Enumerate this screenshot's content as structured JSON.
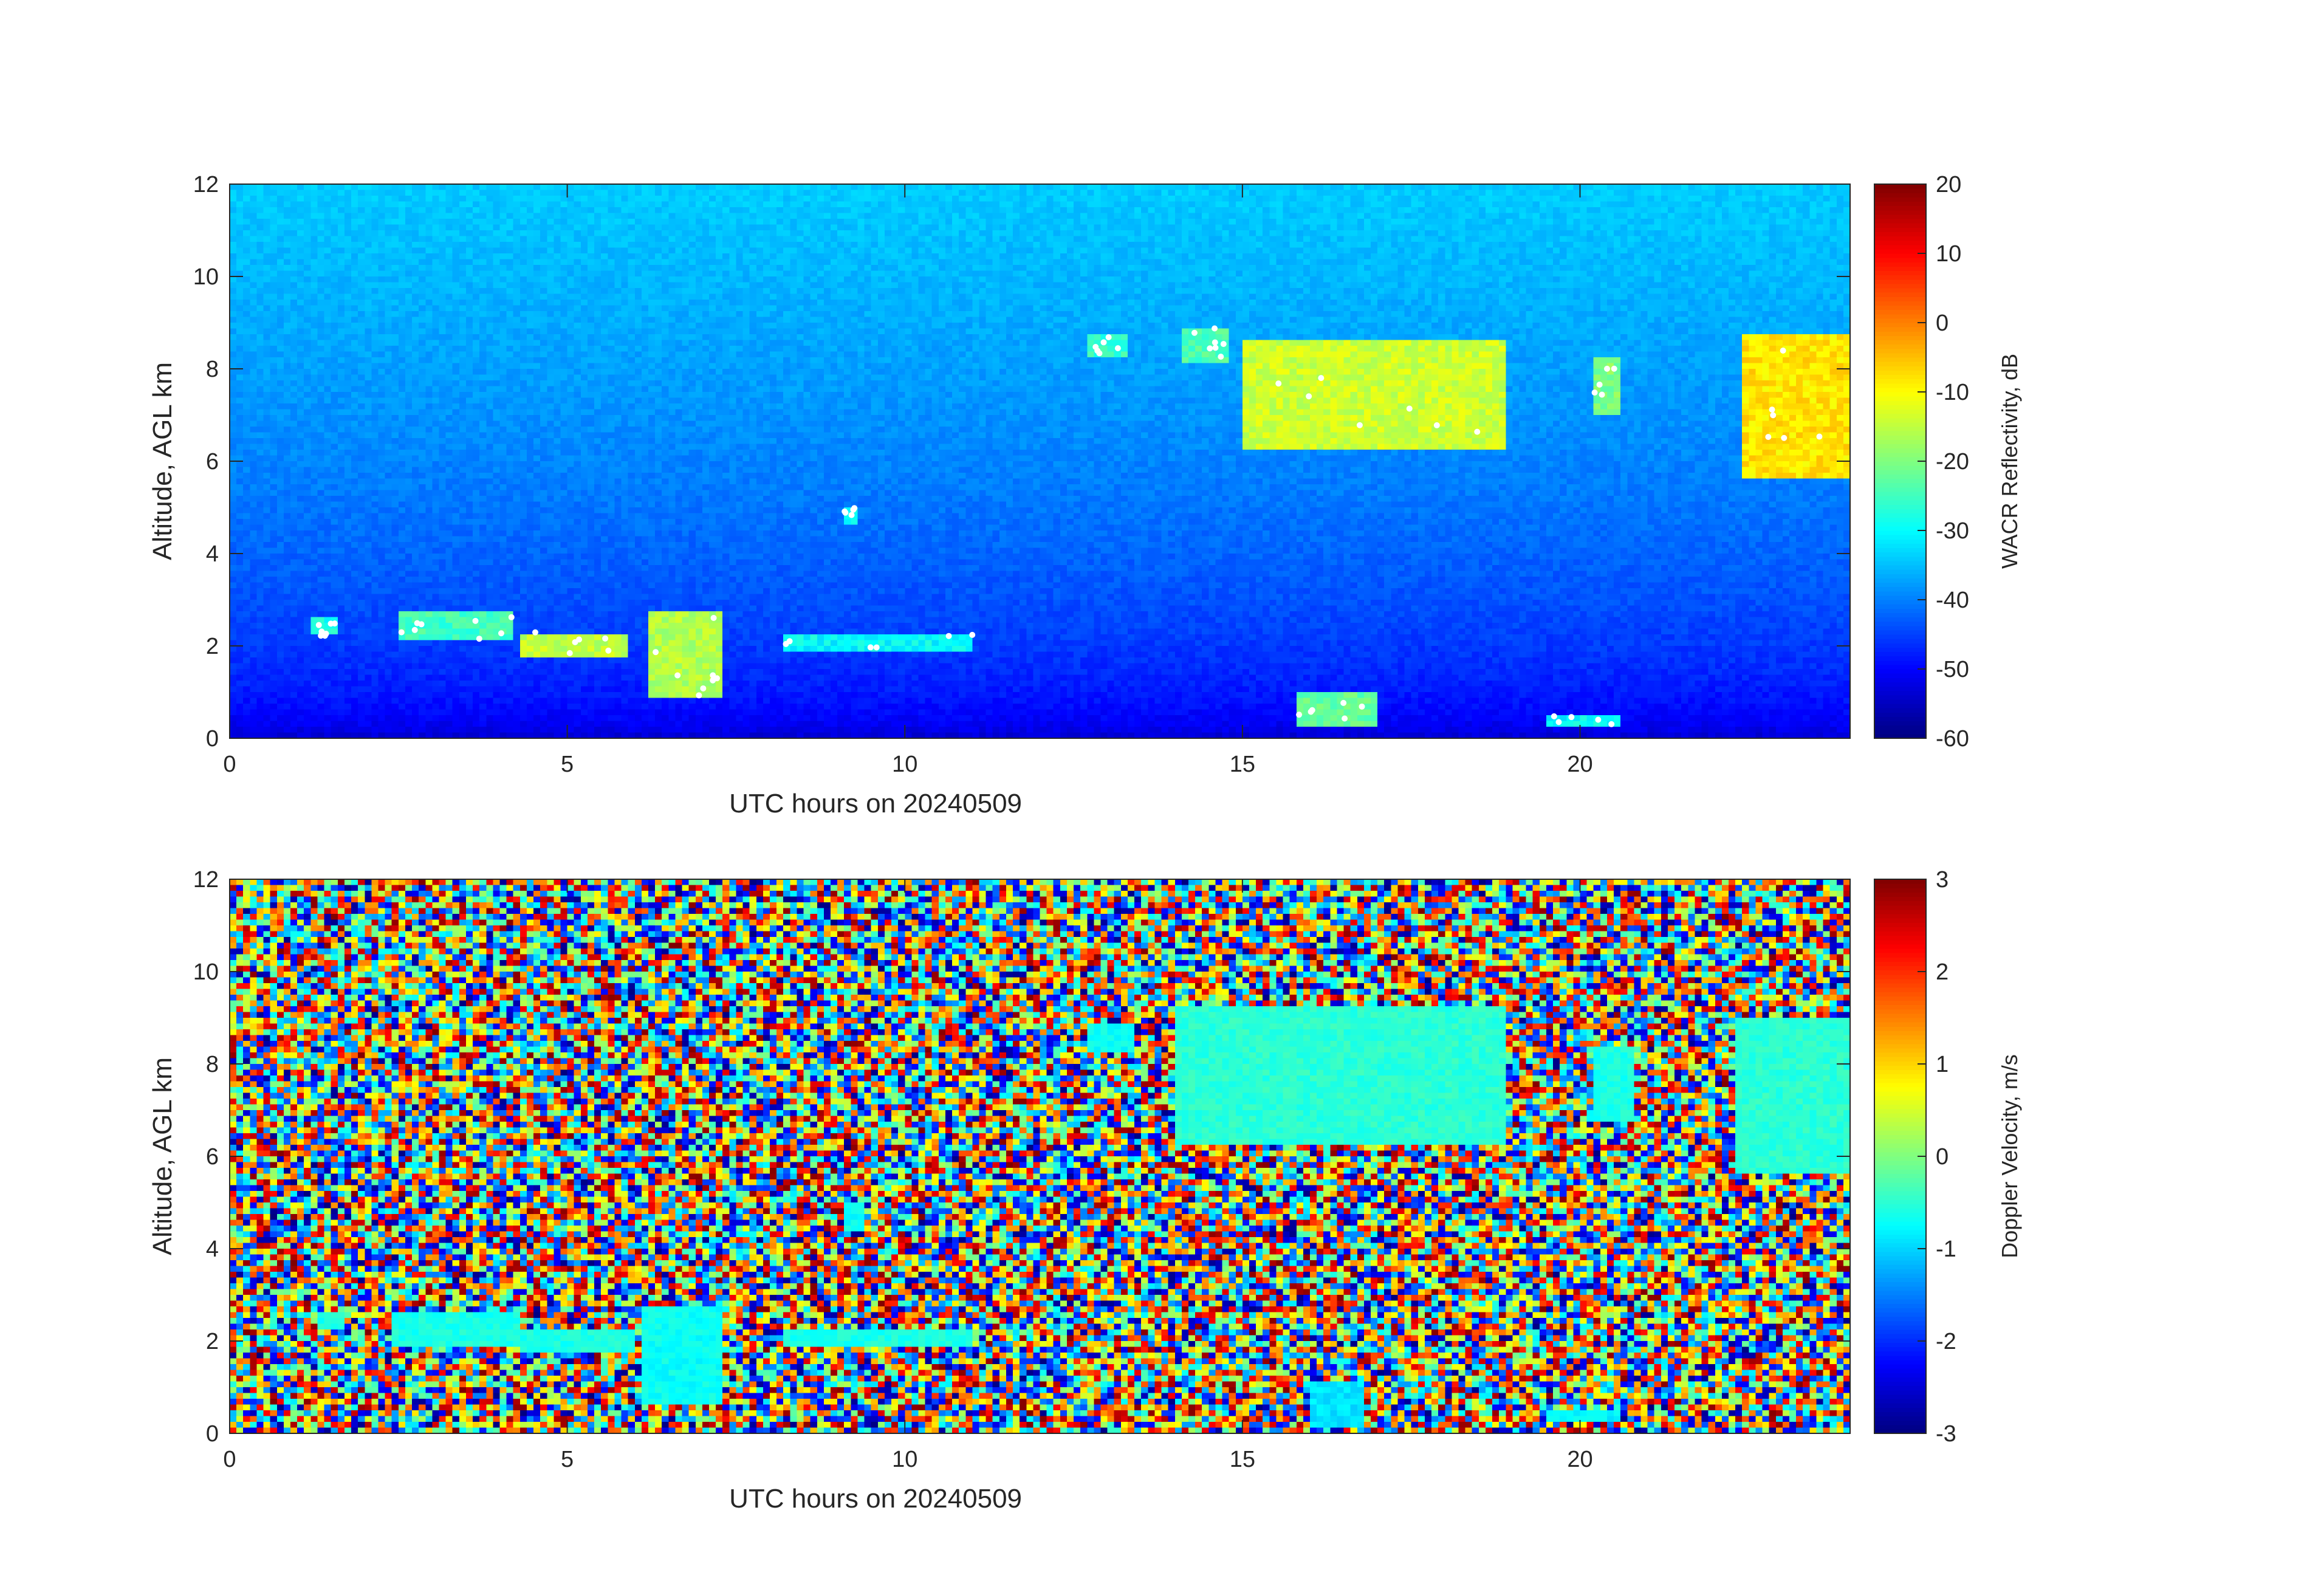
{
  "chart_data": [
    {
      "type": "heatmap",
      "title": "",
      "xlabel": "UTC hours on 20240509",
      "ylabel": "Altitude, AGL km",
      "xlim": [
        0,
        24
      ],
      "ylim": [
        0,
        12
      ],
      "xticks": [
        0,
        5,
        10,
        15,
        20
      ],
      "yticks": [
        0,
        2,
        4,
        6,
        8,
        10,
        12
      ],
      "grid": false,
      "colormap": "jet",
      "colorbar": {
        "label": "WACR Reflectivity, dB",
        "range": [
          -60,
          20
        ],
        "ticks": [
          -60,
          -50,
          -40,
          -30,
          -20,
          -10,
          0,
          10,
          20
        ],
        "placement": "right"
      },
      "background": {
        "description_free": true,
        "value_at_surface": -55,
        "value_at_top": -34
      },
      "cloud_features": [
        {
          "x_range": [
            1.2,
            1.6
          ],
          "alt_range": [
            2.2,
            2.6
          ],
          "value": -28
        },
        {
          "x_range": [
            2.5,
            4.2
          ],
          "alt_range": [
            2.1,
            2.8
          ],
          "value": -25
        },
        {
          "x_range": [
            4.3,
            5.9
          ],
          "alt_range": [
            1.8,
            2.3
          ],
          "value": -15
        },
        {
          "x_range": [
            6.2,
            7.3
          ],
          "alt_range": [
            0.9,
            2.8
          ],
          "value": -16
        },
        {
          "x_range": [
            8.2,
            11.0
          ],
          "alt_range": [
            1.9,
            2.3
          ],
          "value": -30
        },
        {
          "x_range": [
            9.1,
            9.3
          ],
          "alt_range": [
            4.6,
            5.0
          ],
          "value": -30
        },
        {
          "x_range": [
            12.7,
            13.3
          ],
          "alt_range": [
            8.2,
            8.8
          ],
          "value": -26
        },
        {
          "x_range": [
            14.1,
            14.8
          ],
          "alt_range": [
            8.1,
            8.9
          ],
          "value": -24
        },
        {
          "x_range": [
            15.0,
            18.9
          ],
          "alt_range": [
            6.2,
            8.6
          ],
          "value": -14
        },
        {
          "x_range": [
            20.2,
            20.6
          ],
          "alt_range": [
            7.0,
            8.2
          ],
          "value": -20
        },
        {
          "x_range": [
            22.4,
            24.0
          ],
          "alt_range": [
            5.6,
            8.8
          ],
          "value": -8
        },
        {
          "x_range": [
            15.8,
            17.0
          ],
          "alt_range": [
            0.2,
            1.0
          ],
          "value": -22
        },
        {
          "x_range": [
            19.5,
            20.6
          ],
          "alt_range": [
            0.3,
            0.5
          ],
          "value": -30
        }
      ],
      "saturated_points_color": "#ffffff"
    },
    {
      "type": "heatmap",
      "title": "",
      "xlabel": "UTC hours on 20240509",
      "ylabel": "Altitude, AGL km",
      "xlim": [
        0,
        24
      ],
      "ylim": [
        0,
        12
      ],
      "xticks": [
        0,
        5,
        10,
        15,
        20
      ],
      "yticks": [
        0,
        2,
        4,
        6,
        8,
        10,
        12
      ],
      "grid": false,
      "colormap": "jet",
      "colorbar": {
        "label": "Doppler Velocity, m/s",
        "range": [
          -3,
          3
        ],
        "ticks": [
          -3,
          -2,
          -1,
          0,
          1,
          2,
          3
        ],
        "placement": "right"
      },
      "background": "random noise across full range",
      "cloud_features": [
        {
          "x_range": [
            1.3,
            1.7
          ],
          "alt_range": [
            2.2,
            2.6
          ],
          "value": -0.6
        },
        {
          "x_range": [
            2.4,
            4.3
          ],
          "alt_range": [
            1.9,
            2.6
          ],
          "value": -0.6
        },
        {
          "x_range": [
            4.3,
            6.0
          ],
          "alt_range": [
            1.7,
            2.2
          ],
          "value": -0.6
        },
        {
          "x_range": [
            6.1,
            7.3
          ],
          "alt_range": [
            0.6,
            2.8
          ],
          "value": -0.7
        },
        {
          "x_range": [
            8.2,
            11.0
          ],
          "alt_range": [
            1.9,
            2.2
          ],
          "value": -0.6
        },
        {
          "x_range": [
            9.1,
            9.4
          ],
          "alt_range": [
            4.4,
            5.0
          ],
          "value": -0.7
        },
        {
          "x_range": [
            12.7,
            13.4
          ],
          "alt_range": [
            8.2,
            8.9
          ],
          "value": -0.7
        },
        {
          "x_range": [
            14.0,
            18.9
          ],
          "alt_range": [
            6.2,
            9.3
          ],
          "value": -0.5
        },
        {
          "x_range": [
            20.2,
            20.8
          ],
          "alt_range": [
            6.7,
            8.4
          ],
          "value": -0.6
        },
        {
          "x_range": [
            22.3,
            24.0
          ],
          "alt_range": [
            5.6,
            9.0
          ],
          "value": -0.5
        },
        {
          "x_range": [
            16.0,
            16.8
          ],
          "alt_range": [
            0.1,
            1.1
          ],
          "value": -0.9
        },
        {
          "x_range": [
            19.5,
            20.6
          ],
          "alt_range": [
            0.2,
            0.5
          ],
          "value": -0.8
        }
      ]
    }
  ]
}
